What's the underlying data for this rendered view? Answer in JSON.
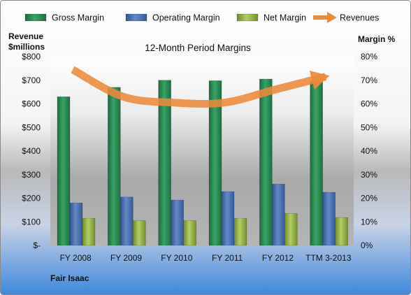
{
  "chart_data": {
    "type": "bar",
    "title": "12-Month Period Margins",
    "company": "Fair Isaac",
    "categories": [
      "FY 2008",
      "FY 2009",
      "FY 2010",
      "FY 2011",
      "FY 2012",
      "TTM 3-2013"
    ],
    "y_left": {
      "label_line1": "Revenue",
      "label_line2": "$millions",
      "range": [
        0,
        800
      ],
      "ticks": [
        0,
        100,
        200,
        300,
        400,
        500,
        600,
        700,
        800
      ],
      "tick_labels": [
        "$-",
        "$100",
        "$200",
        "$300",
        "$400",
        "$500",
        "$600",
        "$700",
        "$800"
      ]
    },
    "y_right": {
      "label": "Margin %",
      "range": [
        0,
        80
      ],
      "ticks": [
        0,
        10,
        20,
        30,
        40,
        50,
        60,
        70,
        80
      ],
      "tick_labels": [
        "0%",
        "10%",
        "20%",
        "30%",
        "40%",
        "50%",
        "60%",
        "70%",
        "80%"
      ]
    },
    "series": [
      {
        "name": "Gross Margin",
        "kind": "bar",
        "axis": "right",
        "values": [
          63,
          67,
          70,
          69.8,
          70.5,
          69.5
        ]
      },
      {
        "name": "Operating Margin",
        "kind": "bar",
        "axis": "right",
        "values": [
          18,
          20.5,
          19.2,
          22.8,
          26,
          22.5
        ]
      },
      {
        "name": "Net Margin",
        "kind": "bar",
        "axis": "right",
        "values": [
          11.5,
          10.5,
          10.5,
          11.5,
          13.5,
          11.8
        ]
      },
      {
        "name": "Revenues",
        "kind": "line-arrow",
        "axis": "left",
        "values": [
          745,
          630,
          605,
          605,
          660,
          715
        ]
      }
    ],
    "colors": {
      "Gross Margin": "#2e8b57",
      "Operating Margin": "#4f74b3",
      "Net Margin": "#9ab84a",
      "Revenues": "#ec8a3c"
    },
    "legend_placement": "top",
    "grid": false
  }
}
